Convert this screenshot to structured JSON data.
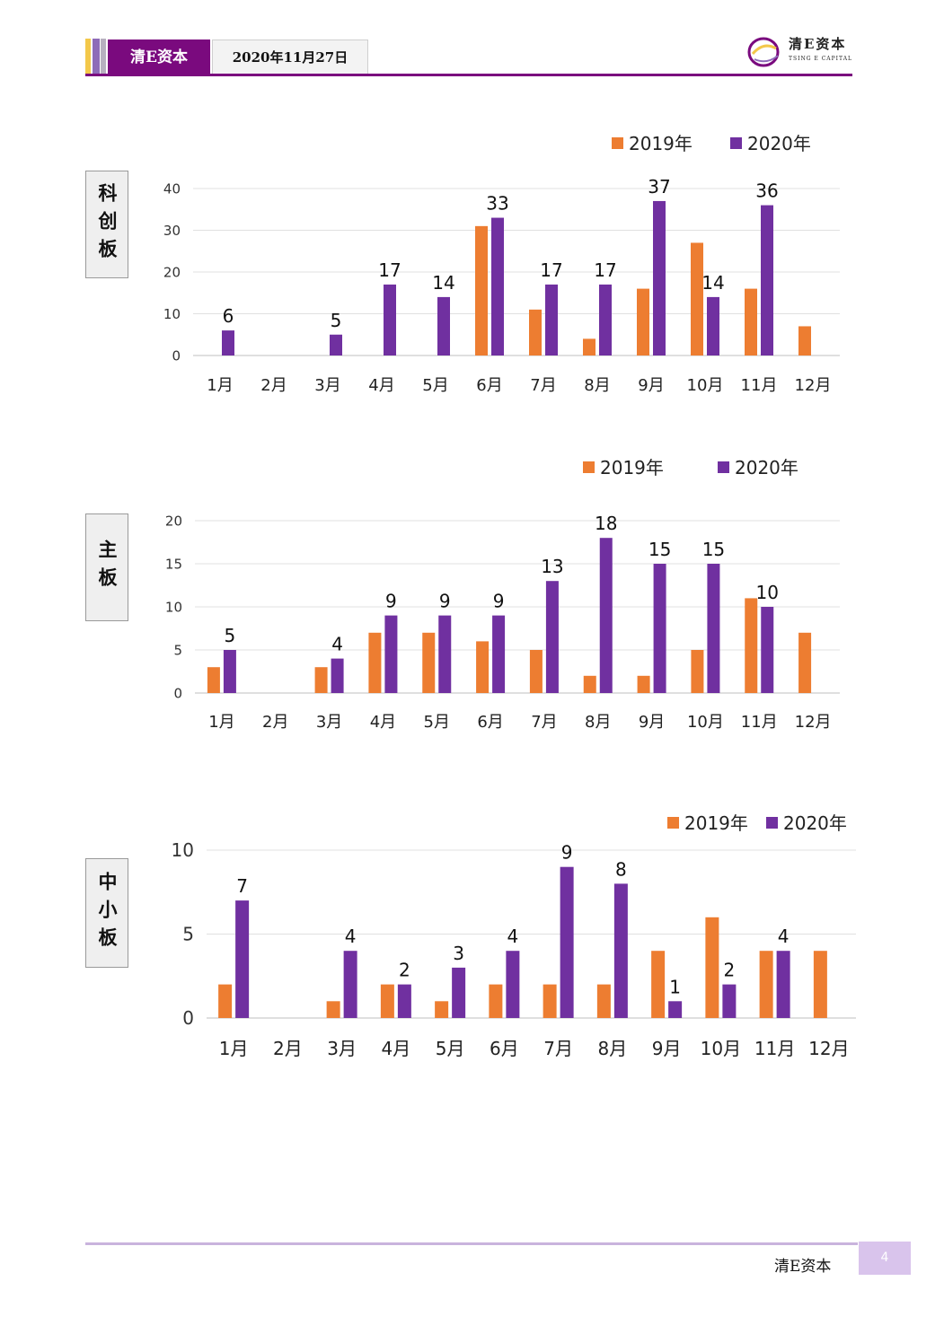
{
  "header": {
    "brand": "清E资本",
    "date": "2020年11月27日",
    "logo_cn": "清E资本",
    "logo_en": "TSING E CAPITAL",
    "colors": {
      "brand_purple": "#7a0a7e",
      "stripe_yellow": "#f3c84a",
      "stripe_violet": "#8e6bb8",
      "stripe_gray": "#b7b0bf"
    }
  },
  "footer": {
    "brand": "清E资本",
    "page_number": "4"
  },
  "chart_data": [
    {
      "type": "bar",
      "side_label": "科创板",
      "categories": [
        "1月",
        "2月",
        "3月",
        "4月",
        "5月",
        "6月",
        "7月",
        "8月",
        "9月",
        "10月",
        "11月",
        "12月"
      ],
      "series": [
        {
          "name": "2019年",
          "color": "#ed7d31",
          "values": [
            0,
            0,
            0,
            0,
            0,
            31,
            11,
            4,
            16,
            27,
            16,
            7
          ]
        },
        {
          "name": "2020年",
          "color": "#7030a0",
          "values": [
            6,
            0,
            5,
            17,
            14,
            33,
            17,
            17,
            37,
            14,
            36,
            null
          ],
          "data_labels": [
            "6",
            "",
            "5",
            "17",
            "14",
            "33",
            "17",
            "17",
            "37",
            "14",
            "36",
            ""
          ]
        }
      ],
      "ylim": [
        0,
        40
      ],
      "yticks": [
        "0",
        "10",
        "20",
        "30",
        "40"
      ],
      "grid": true,
      "legend": "top-right"
    },
    {
      "type": "bar",
      "side_label": "主板",
      "categories": [
        "1月",
        "2月",
        "3月",
        "4月",
        "5月",
        "6月",
        "7月",
        "8月",
        "9月",
        "10月",
        "11月",
        "12月"
      ],
      "series": [
        {
          "name": "2019年",
          "color": "#ed7d31",
          "values": [
            3,
            0,
            3,
            7,
            7,
            6,
            5,
            2,
            2,
            5,
            11,
            7
          ]
        },
        {
          "name": "2020年",
          "color": "#7030a0",
          "values": [
            5,
            0,
            4,
            9,
            9,
            9,
            13,
            18,
            15,
            15,
            10,
            null
          ],
          "data_labels": [
            "5",
            "",
            "4",
            "9",
            "9",
            "9",
            "13",
            "18",
            "15",
            "15",
            "10",
            ""
          ]
        }
      ],
      "ylim": [
        0,
        20
      ],
      "yticks": [
        "0",
        "5",
        "10",
        "15",
        "20"
      ],
      "grid": true,
      "legend": "top-right"
    },
    {
      "type": "bar",
      "side_label": "中小板",
      "categories": [
        "1月",
        "2月",
        "3月",
        "4月",
        "5月",
        "6月",
        "7月",
        "8月",
        "9月",
        "10月",
        "11月",
        "12月"
      ],
      "series": [
        {
          "name": "2019年",
          "color": "#ed7d31",
          "values": [
            2,
            0,
            1,
            2,
            1,
            2,
            2,
            2,
            4,
            6,
            4,
            4
          ]
        },
        {
          "name": "2020年",
          "color": "#7030a0",
          "values": [
            7,
            0,
            4,
            2,
            3,
            4,
            9,
            8,
            1,
            2,
            4,
            null
          ],
          "data_labels": [
            "7",
            "",
            "4",
            "2",
            "3",
            "4",
            "9",
            "8",
            "1",
            "2",
            "4",
            ""
          ]
        }
      ],
      "ylim": [
        0,
        10
      ],
      "yticks": [
        "0",
        "5",
        "10"
      ],
      "grid": true,
      "legend": "top-right"
    }
  ]
}
